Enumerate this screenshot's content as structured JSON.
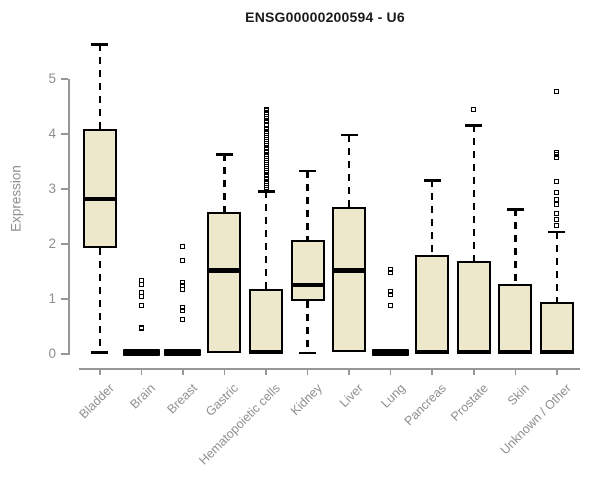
{
  "chart_data": {
    "type": "boxplot",
    "title": "ENSG00000200594 - U6",
    "ylabel": "Expression",
    "xlabel": "",
    "yticks": [
      0,
      1,
      2,
      3,
      4,
      5
    ],
    "ylim": [
      0,
      5.7
    ],
    "grid": false,
    "legend": false,
    "colors": {
      "box_fill": "#EDE7CC",
      "box_line": "#000000",
      "axis": "#979797",
      "tick_text": "#8F8F8F",
      "title_text": "#1A1A1A"
    },
    "categories": [
      "Bladder",
      "Brain",
      "Breast",
      "Gastric",
      "Hematopoietic cells",
      "Kidney",
      "Liver",
      "Lung",
      "Pancreas",
      "Prostate",
      "Skin",
      "Unknown / Other"
    ],
    "boxes": [
      {
        "category": "Bladder",
        "whisker_low": 0.02,
        "q1": 1.92,
        "median": 2.81,
        "q3": 4.08,
        "whisker_high": 5.62,
        "outliers": []
      },
      {
        "category": "Brain",
        "whisker_low": 0,
        "q1": 0,
        "median": 0.02,
        "q3": 0.05,
        "whisker_high": 0.05,
        "outliers": [
          1.33,
          1.26,
          1.11,
          1.04,
          0.87,
          0.48,
          0.45
        ]
      },
      {
        "category": "Breast",
        "whisker_low": 0,
        "q1": 0,
        "median": 0.02,
        "q3": 0.05,
        "whisker_high": 0.05,
        "outliers": [
          1.95,
          1.7,
          1.3,
          1.23,
          1.17,
          0.84,
          0.79,
          0.62
        ]
      },
      {
        "category": "Gastric",
        "whisker_low": 0.01,
        "q1": 0.01,
        "median": 1.51,
        "q3": 2.58,
        "whisker_high": 3.62,
        "outliers": []
      },
      {
        "category": "Hematopoietic cells",
        "whisker_low": 0,
        "q1": 0,
        "median": 0.03,
        "q3": 1.18,
        "whisker_high": 2.95,
        "outliers": [
          2.98,
          3.02,
          3.05,
          3.09,
          3.12,
          3.16,
          3.19,
          3.23,
          3.26,
          3.3,
          3.33,
          3.37,
          3.4,
          3.44,
          3.47,
          3.51,
          3.54,
          3.58,
          3.61,
          3.65,
          3.68,
          3.72,
          3.75,
          3.79,
          3.82,
          3.86,
          3.89,
          3.93,
          3.96,
          4.0,
          4.03,
          4.07,
          4.1,
          4.14,
          4.17,
          4.21,
          4.24,
          4.28,
          4.31,
          4.35,
          4.38,
          4.42,
          4.44
        ]
      },
      {
        "category": "Kidney",
        "whisker_low": 0.01,
        "q1": 0.95,
        "median": 1.25,
        "q3": 2.06,
        "whisker_high": 3.32,
        "outliers": []
      },
      {
        "category": "Liver",
        "whisker_low": 0.01,
        "q1": 0.02,
        "median": 1.51,
        "q3": 2.67,
        "whisker_high": 3.97,
        "outliers": []
      },
      {
        "category": "Lung",
        "whisker_low": 0,
        "q1": 0,
        "median": 0.02,
        "q3": 0.05,
        "whisker_high": 0.05,
        "outliers": [
          1.52,
          1.48,
          1.12,
          1.07,
          0.88
        ]
      },
      {
        "category": "Pancreas",
        "whisker_low": 0.01,
        "q1": 0.01,
        "median": 0.03,
        "q3": 1.79,
        "whisker_high": 3.15,
        "outliers": []
      },
      {
        "category": "Prostate",
        "whisker_low": 0.01,
        "q1": 0.01,
        "median": 0.03,
        "q3": 1.69,
        "whisker_high": 4.15,
        "outliers": [
          4.43
        ]
      },
      {
        "category": "Skin",
        "whisker_low": 0.01,
        "q1": 0.01,
        "median": 0.03,
        "q3": 1.27,
        "whisker_high": 2.62,
        "outliers": []
      },
      {
        "category": "Unknown / Other",
        "whisker_low": 0.01,
        "q1": 0.01,
        "median": 0.03,
        "q3": 0.93,
        "whisker_high": 2.21,
        "outliers": [
          4.77,
          3.65,
          3.61,
          3.57,
          3.12,
          2.93,
          2.8,
          2.71,
          2.55,
          2.43,
          2.33
        ]
      }
    ]
  }
}
